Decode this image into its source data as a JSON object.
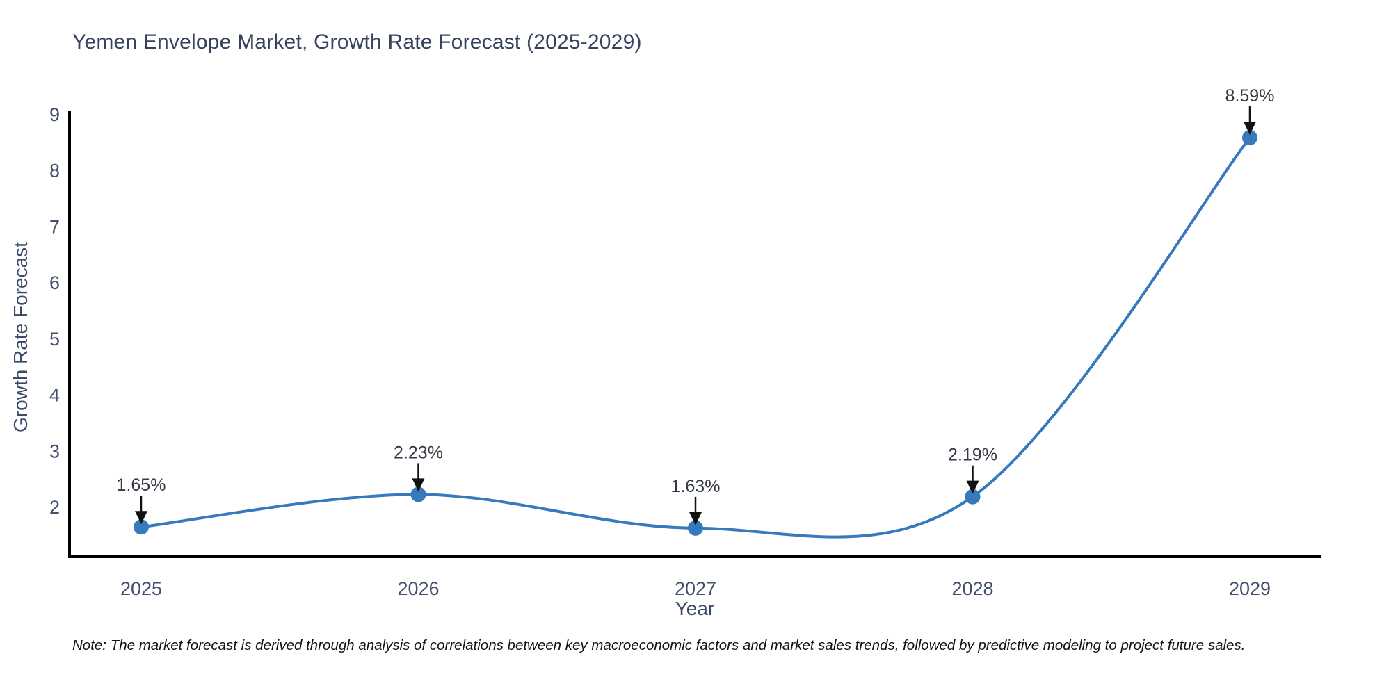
{
  "page": {
    "note": "Note: The market forecast is derived through analysis of correlations between key macroeconomic factors and market sales trends, followed by predictive modeling to project future sales."
  },
  "chart_data": {
    "type": "line",
    "title": "Yemen Envelope Market, Growth Rate Forecast (2025-2029)",
    "xlabel": "Year",
    "ylabel": "Growth Rate Forecast",
    "x": [
      2025,
      2026,
      2027,
      2028,
      2029
    ],
    "values": [
      1.65,
      2.23,
      1.63,
      2.19,
      8.59
    ],
    "point_labels": [
      "1.65%",
      "2.23%",
      "1.63%",
      "2.19%",
      "8.59%"
    ],
    "yticks": [
      2,
      3,
      4,
      5,
      6,
      7,
      8,
      9
    ],
    "ylim": [
      1.12,
      9.06
    ],
    "xlim": [
      2024.74,
      2029.26
    ],
    "grid": false,
    "legend": false,
    "line_shape": "spline",
    "annotation_arrows": true,
    "colors": {
      "line": "#3779bd",
      "marker": "#3779bd",
      "axis": "#000000",
      "title": "#36425e",
      "tick_label": "#42506b",
      "annotation": "#333a45",
      "arrow": "#111111",
      "note": "#111111",
      "background": "#ffffff"
    }
  }
}
